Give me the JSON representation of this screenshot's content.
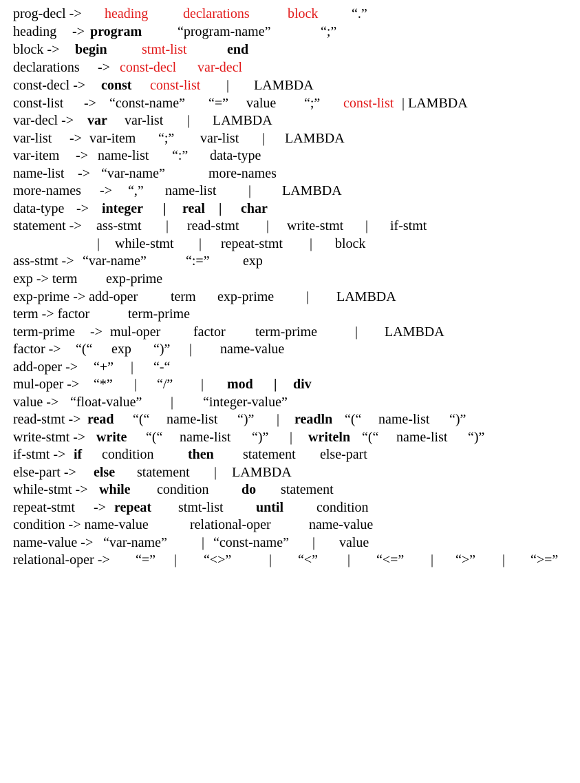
{
  "accent_red": "#e21b1b",
  "rules": [
    {
      "id": "prog-decl",
      "tokens": [
        {
          "t": "prog-decl ->",
          "s": "n"
        },
        {
          "t": "heading",
          "s": "r"
        },
        {
          "t": "declarations",
          "s": "r"
        },
        {
          "t": "block",
          "s": "r"
        },
        {
          "t": "“.”",
          "s": "n"
        }
      ]
    },
    {
      "id": "heading",
      "tokens": [
        {
          "t": "heading",
          "s": "n"
        },
        {
          "t": "->",
          "s": "n"
        },
        {
          "t": "program",
          "s": "b"
        },
        {
          "t": "“program-name”",
          "s": "n"
        },
        {
          "t": "“;”",
          "s": "n"
        }
      ]
    },
    {
      "id": "block",
      "tokens": [
        {
          "t": "block ->",
          "s": "n"
        },
        {
          "t": "begin",
          "s": "b"
        },
        {
          "t": "stmt-list",
          "s": "r"
        },
        {
          "t": "end",
          "s": "b"
        }
      ]
    },
    {
      "id": "declarations",
      "tokens": [
        {
          "t": "declarations",
          "s": "n"
        },
        {
          "t": "->",
          "s": "n"
        },
        {
          "t": "const-decl",
          "s": "r"
        },
        {
          "t": "var-decl",
          "s": "r"
        }
      ]
    },
    {
      "id": "const-decl",
      "tokens": [
        {
          "t": "const-decl ->",
          "s": "n"
        },
        {
          "t": "const",
          "s": "b"
        },
        {
          "t": "const-list",
          "s": "r"
        },
        {
          "t": "|",
          "s": "n"
        },
        {
          "t": "LAMBDA",
          "s": "n"
        }
      ]
    },
    {
      "id": "const-list",
      "tokens": [
        {
          "t": "const-list",
          "s": "n"
        },
        {
          "t": "->",
          "s": "n"
        },
        {
          "t": "“const-name”",
          "s": "n"
        },
        {
          "t": "“=”",
          "s": "n"
        },
        {
          "t": "value",
          "s": "n"
        },
        {
          "t": "“;”",
          "s": "n"
        },
        {
          "t": "const-list",
          "s": "r"
        },
        {
          "t": "| LAMBDA",
          "s": "n"
        }
      ]
    },
    {
      "id": "var-decl",
      "tokens": [
        {
          "t": "var-decl ->",
          "s": "n"
        },
        {
          "t": "var",
          "s": "b"
        },
        {
          "t": "var-list",
          "s": "n"
        },
        {
          "t": "|",
          "s": "n"
        },
        {
          "t": "LAMBDA",
          "s": "n"
        }
      ]
    },
    {
      "id": "var-list",
      "tokens": [
        {
          "t": "var-list",
          "s": "n"
        },
        {
          "t": "->",
          "s": "n"
        },
        {
          "t": "var-item",
          "s": "n"
        },
        {
          "t": "“;”",
          "s": "n"
        },
        {
          "t": "var-list",
          "s": "n"
        },
        {
          "t": "|",
          "s": "n"
        },
        {
          "t": "LAMBDA",
          "s": "n"
        }
      ]
    },
    {
      "id": "var-item",
      "tokens": [
        {
          "t": "var-item",
          "s": "n"
        },
        {
          "t": "->",
          "s": "n"
        },
        {
          "t": "name-list",
          "s": "n"
        },
        {
          "t": "“:”",
          "s": "n"
        },
        {
          "t": "data-type",
          "s": "n"
        }
      ]
    },
    {
      "id": "name-list",
      "tokens": [
        {
          "t": "name-list",
          "s": "n"
        },
        {
          "t": "->",
          "s": "n"
        },
        {
          "t": "“var-name”",
          "s": "n"
        },
        {
          "t": "more-names",
          "s": "n"
        }
      ]
    },
    {
      "id": "more-names",
      "tokens": [
        {
          "t": "more-names",
          "s": "n"
        },
        {
          "t": "->",
          "s": "n"
        },
        {
          "t": "“,”",
          "s": "n"
        },
        {
          "t": "name-list",
          "s": "n"
        },
        {
          "t": "|",
          "s": "n"
        },
        {
          "t": "LAMBDA",
          "s": "n"
        }
      ]
    },
    {
      "id": "data-type",
      "tokens": [
        {
          "t": "data-type",
          "s": "n"
        },
        {
          "t": "->",
          "s": "n"
        },
        {
          "t": "integer",
          "s": "b"
        },
        {
          "t": "|",
          "s": "b"
        },
        {
          "t": "real",
          "s": "b"
        },
        {
          "t": "|",
          "s": "b"
        },
        {
          "t": "char",
          "s": "b"
        }
      ]
    },
    {
      "id": "statement",
      "tokens": [
        {
          "t": "statement ->",
          "s": "n"
        },
        {
          "t": "ass-stmt",
          "s": "n"
        },
        {
          "t": "|",
          "s": "n"
        },
        {
          "t": "read-stmt",
          "s": "n"
        },
        {
          "t": "|",
          "s": "n"
        },
        {
          "t": "write-stmt",
          "s": "n"
        },
        {
          "t": "|",
          "s": "n"
        },
        {
          "t": "if-stmt",
          "s": "n"
        }
      ]
    },
    {
      "id": "statement-cont",
      "tokens": [
        {
          "t": "|",
          "s": "n"
        },
        {
          "t": "while-stmt",
          "s": "n"
        },
        {
          "t": "|",
          "s": "n"
        },
        {
          "t": "repeat-stmt",
          "s": "n"
        },
        {
          "t": "|",
          "s": "n"
        },
        {
          "t": "block",
          "s": "n"
        }
      ]
    },
    {
      "id": "ass-stmt",
      "tokens": [
        {
          "t": "ass-stmt ->",
          "s": "n"
        },
        {
          "t": "“var-name”",
          "s": "n"
        },
        {
          "t": "“:=”",
          "s": "n"
        },
        {
          "t": "exp",
          "s": "n"
        }
      ]
    },
    {
      "id": "exp",
      "tokens": [
        {
          "t": "exp -> term",
          "s": "n"
        },
        {
          "t": "exp-prime",
          "s": "n"
        }
      ]
    },
    {
      "id": "exp-prime",
      "tokens": [
        {
          "t": "exp-prime -> add-oper",
          "s": "n"
        },
        {
          "t": "term",
          "s": "n"
        },
        {
          "t": "exp-prime",
          "s": "n"
        },
        {
          "t": "|",
          "s": "n"
        },
        {
          "t": "LAMBDA",
          "s": "n"
        }
      ]
    },
    {
      "id": "term",
      "tokens": [
        {
          "t": "term -> factor",
          "s": "n"
        },
        {
          "t": "term-prime",
          "s": "n"
        }
      ]
    },
    {
      "id": "term-prime",
      "tokens": [
        {
          "t": "term-prime",
          "s": "n"
        },
        {
          "t": "->",
          "s": "n"
        },
        {
          "t": "mul-oper",
          "s": "n"
        },
        {
          "t": "factor",
          "s": "n"
        },
        {
          "t": "term-prime",
          "s": "n"
        },
        {
          "t": "|",
          "s": "n"
        },
        {
          "t": "LAMBDA",
          "s": "n"
        }
      ]
    },
    {
      "id": "factor",
      "tokens": [
        {
          "t": "factor ->",
          "s": "n"
        },
        {
          "t": "“(“",
          "s": "n"
        },
        {
          "t": "exp",
          "s": "n"
        },
        {
          "t": "“)”",
          "s": "n"
        },
        {
          "t": "|",
          "s": "n"
        },
        {
          "t": "name-value",
          "s": "n"
        }
      ]
    },
    {
      "id": "add-oper",
      "tokens": [
        {
          "t": "add-oper ->",
          "s": "n"
        },
        {
          "t": "“+”",
          "s": "n"
        },
        {
          "t": "|",
          "s": "n"
        },
        {
          "t": "“-“",
          "s": "n"
        }
      ]
    },
    {
      "id": "mul-oper",
      "tokens": [
        {
          "t": "mul-oper ->",
          "s": "n"
        },
        {
          "t": "“*”",
          "s": "n"
        },
        {
          "t": "|",
          "s": "n"
        },
        {
          "t": "“/”",
          "s": "n"
        },
        {
          "t": "|",
          "s": "n"
        },
        {
          "t": "mod",
          "s": "b"
        },
        {
          "t": "|",
          "s": "b"
        },
        {
          "t": "div",
          "s": "b"
        }
      ]
    },
    {
      "id": "value",
      "tokens": [
        {
          "t": "value ->",
          "s": "n"
        },
        {
          "t": "“float-value”",
          "s": "n"
        },
        {
          "t": "|",
          "s": "n"
        },
        {
          "t": "“integer-value”",
          "s": "n"
        }
      ]
    },
    {
      "id": "read-stmt",
      "tokens": [
        {
          "t": "read-stmt ->",
          "s": "n"
        },
        {
          "t": "read",
          "s": "b"
        },
        {
          "t": "“(“",
          "s": "n"
        },
        {
          "t": "name-list",
          "s": "n"
        },
        {
          "t": "“)”",
          "s": "n"
        },
        {
          "t": "|",
          "s": "n"
        },
        {
          "t": "readln",
          "s": "b"
        },
        {
          "t": "“(“",
          "s": "n"
        },
        {
          "t": "name-list",
          "s": "n"
        },
        {
          "t": "“)”",
          "s": "n"
        }
      ]
    },
    {
      "id": "write-stmt",
      "tokens": [
        {
          "t": "write-stmt ->",
          "s": "n"
        },
        {
          "t": "write",
          "s": "b"
        },
        {
          "t": "“(“",
          "s": "n"
        },
        {
          "t": "name-list",
          "s": "n"
        },
        {
          "t": "“)”",
          "s": "n"
        },
        {
          "t": "|",
          "s": "n"
        },
        {
          "t": "writeln",
          "s": "b"
        },
        {
          "t": "“(“",
          "s": "n"
        },
        {
          "t": "name-list",
          "s": "n"
        },
        {
          "t": "“)”",
          "s": "n"
        }
      ]
    },
    {
      "id": "if-stmt",
      "tokens": [
        {
          "t": "if-stmt ->",
          "s": "n"
        },
        {
          "t": "if",
          "s": "b"
        },
        {
          "t": "condition",
          "s": "n"
        },
        {
          "t": "then",
          "s": "b"
        },
        {
          "t": "statement",
          "s": "n"
        },
        {
          "t": "else-part",
          "s": "n"
        }
      ]
    },
    {
      "id": "else-part",
      "tokens": [
        {
          "t": "else-part ->",
          "s": "n"
        },
        {
          "t": "else",
          "s": "b"
        },
        {
          "t": "statement",
          "s": "n"
        },
        {
          "t": "|",
          "s": "n"
        },
        {
          "t": "LAMBDA",
          "s": "n"
        }
      ]
    },
    {
      "id": "while-stmt",
      "tokens": [
        {
          "t": "while-stmt ->",
          "s": "n"
        },
        {
          "t": "while",
          "s": "b"
        },
        {
          "t": "condition",
          "s": "n"
        },
        {
          "t": "do",
          "s": "b"
        },
        {
          "t": "statement",
          "s": "n"
        }
      ]
    },
    {
      "id": "repeat-stmt",
      "tokens": [
        {
          "t": "repeat-stmt",
          "s": "n"
        },
        {
          "t": "->",
          "s": "n"
        },
        {
          "t": "repeat",
          "s": "b"
        },
        {
          "t": "stmt-list",
          "s": "n"
        },
        {
          "t": "until",
          "s": "b"
        },
        {
          "t": "condition",
          "s": "n"
        }
      ]
    },
    {
      "id": "condition",
      "tokens": [
        {
          "t": "condition -> name-value",
          "s": "n"
        },
        {
          "t": "relational-oper",
          "s": "n"
        },
        {
          "t": "name-value",
          "s": "n"
        }
      ]
    },
    {
      "id": "name-value",
      "tokens": [
        {
          "t": "name-value ->",
          "s": "n"
        },
        {
          "t": "“var-name”",
          "s": "n"
        },
        {
          "t": "|",
          "s": "n"
        },
        {
          "t": "“const-name”",
          "s": "n"
        },
        {
          "t": "|",
          "s": "n"
        },
        {
          "t": "value",
          "s": "n"
        }
      ]
    },
    {
      "id": "relational-oper",
      "tokens": [
        {
          "t": "relational-oper ->",
          "s": "n"
        },
        {
          "t": "“=”",
          "s": "n"
        },
        {
          "t": "|",
          "s": "n"
        },
        {
          "t": "“<>”",
          "s": "n"
        },
        {
          "t": "|",
          "s": "n"
        },
        {
          "t": "“<”",
          "s": "n"
        },
        {
          "t": "|",
          "s": "n"
        },
        {
          "t": "“<=”",
          "s": "n"
        },
        {
          "t": "|",
          "s": "n"
        },
        {
          "t": "“>”",
          "s": "n"
        },
        {
          "t": "|",
          "s": "n"
        },
        {
          "t": "“>=”",
          "s": "n"
        }
      ]
    }
  ]
}
